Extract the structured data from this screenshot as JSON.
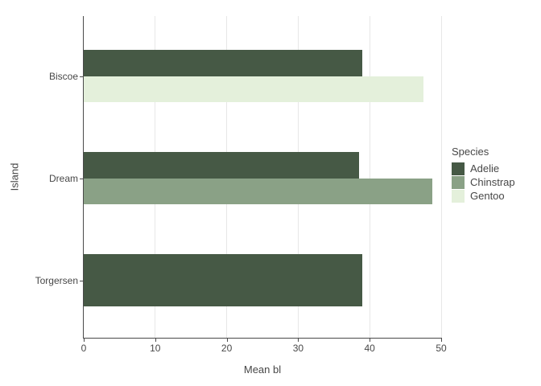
{
  "figure": {
    "title": "",
    "xlabel": "Mean bl",
    "ylabel": "Island",
    "legend_title": "Species"
  },
  "colors": {
    "background": "#ffffff",
    "text": "#474747",
    "axis": "#4a4a4a",
    "gridline": "#e7e7e7",
    "adelie": "#465945",
    "chinstrap": "#8aa186",
    "gentoo": "#e4f0db"
  },
  "chart_data": {
    "type": "bar",
    "orientation": "horizontal",
    "title": "",
    "xlabel": "Mean bl",
    "ylabel": "Island",
    "xlim": [
      0,
      50
    ],
    "xticks": [
      0,
      10,
      20,
      30,
      40,
      50
    ],
    "grid": "vertical-major-only",
    "categories": [
      "Biscoe",
      "Dream",
      "Torgersen"
    ],
    "series": [
      {
        "name": "Adelie",
        "color": "#465945",
        "data": [
          {
            "category": "Biscoe",
            "value": 39.0
          },
          {
            "category": "Dream",
            "value": 38.5
          },
          {
            "category": "Torgersen",
            "value": 39.0
          }
        ]
      },
      {
        "name": "Chinstrap",
        "color": "#8aa186",
        "data": [
          {
            "category": "Dream",
            "value": 48.8
          }
        ]
      },
      {
        "name": "Gentoo",
        "color": "#e4f0db",
        "data": [
          {
            "category": "Biscoe",
            "value": 47.5
          }
        ]
      }
    ],
    "legend": {
      "title": "Species",
      "position": "right",
      "entries": [
        "Adelie",
        "Chinstrap",
        "Gentoo"
      ]
    }
  }
}
